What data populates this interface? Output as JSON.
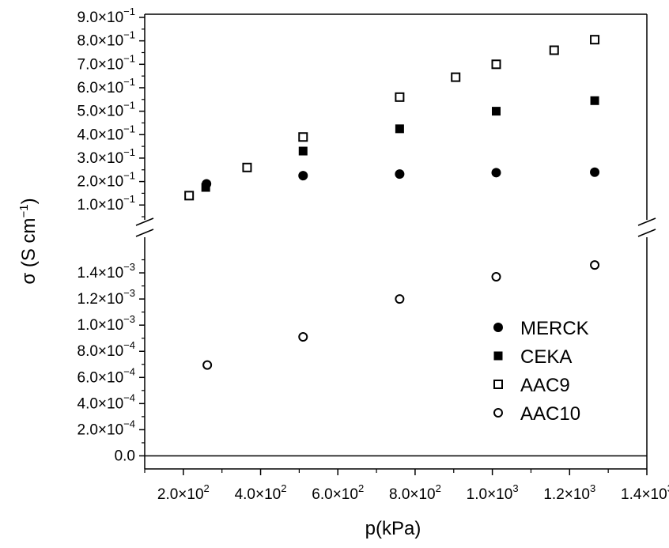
{
  "chart_data": {
    "type": "scatter",
    "title": "",
    "xlabel": "p(kPa)",
    "ylabel": "σ (S cm",
    "ylabel_exp": "−1",
    "ylabel_close": ")",
    "xlim": [
      100,
      1400
    ],
    "x_ticks": [
      {
        "value": 200,
        "label": "2.0×10",
        "exp": "2"
      },
      {
        "value": 400,
        "label": "4.0×10",
        "exp": "2"
      },
      {
        "value": 600,
        "label": "6.0×10",
        "exp": "2"
      },
      {
        "value": 800,
        "label": "8.0×10",
        "exp": "2"
      },
      {
        "value": 1000,
        "label": "1.0×10",
        "exp": "3"
      },
      {
        "value": 1200,
        "label": "1.2×10",
        "exp": "3"
      },
      {
        "value": 1400,
        "label": "1.4×10",
        "exp": "3"
      }
    ],
    "y_axis_break": true,
    "upper_segment": {
      "ylim": [
        0.03,
        0.9
      ],
      "ticks": [
        {
          "value": 0.1,
          "label": "1.0×10",
          "exp": "−1"
        },
        {
          "value": 0.2,
          "label": "2.0×10",
          "exp": "−1"
        },
        {
          "value": 0.3,
          "label": "3.0×10",
          "exp": "−1"
        },
        {
          "value": 0.4,
          "label": "4.0×10",
          "exp": "−1"
        },
        {
          "value": 0.5,
          "label": "5.0×10",
          "exp": "−1"
        },
        {
          "value": 0.6,
          "label": "6.0×10",
          "exp": "−1"
        },
        {
          "value": 0.7,
          "label": "7.0×10",
          "exp": "−1"
        },
        {
          "value": 0.8,
          "label": "8.0×10",
          "exp": "−1"
        },
        {
          "value": 0.9,
          "label": "9.0×10",
          "exp": "−1"
        }
      ]
    },
    "lower_segment": {
      "ylim": [
        -0.0001,
        0.0016
      ],
      "ticks": [
        {
          "value": 0.0,
          "label": "0.0",
          "exp": ""
        },
        {
          "value": 0.0002,
          "label": "2.0×10",
          "exp": "−4"
        },
        {
          "value": 0.0004,
          "label": "4.0×10",
          "exp": "−4"
        },
        {
          "value": 0.0006,
          "label": "6.0×10",
          "exp": "−4"
        },
        {
          "value": 0.0008,
          "label": "8.0×10",
          "exp": "−4"
        },
        {
          "value": 0.001,
          "label": "1.0×10",
          "exp": "−3"
        },
        {
          "value": 0.0012,
          "label": "1.2×10",
          "exp": "−3"
        },
        {
          "value": 0.0014,
          "label": "1.4×10",
          "exp": "−3"
        }
      ]
    },
    "series": [
      {
        "name": "MERCK",
        "marker": "filled-circle",
        "segment": "upper",
        "x": [
          260,
          510,
          760,
          1010,
          1265
        ],
        "y": [
          0.19,
          0.225,
          0.232,
          0.238,
          0.24
        ]
      },
      {
        "name": "CEKA",
        "marker": "filled-square",
        "segment": "upper",
        "x": [
          258,
          510,
          760,
          1010,
          1265
        ],
        "y": [
          0.175,
          0.33,
          0.425,
          0.5,
          0.545
        ]
      },
      {
        "name": "AAC9",
        "marker": "open-square",
        "segment": "upper",
        "x": [
          215,
          365,
          510,
          760,
          905,
          1010,
          1160,
          1265
        ],
        "y": [
          0.14,
          0.26,
          0.39,
          0.56,
          0.645,
          0.7,
          0.76,
          0.805
        ]
      },
      {
        "name": "AAC10",
        "marker": "open-circle",
        "segment": "lower",
        "x": [
          262,
          510,
          760,
          1010,
          1265
        ],
        "y": [
          0.000695,
          0.00091,
          0.0012,
          0.00137,
          0.00146
        ]
      }
    ],
    "legend_placement": "lower-right",
    "grid": false,
    "horizontal_zero_line": true
  }
}
